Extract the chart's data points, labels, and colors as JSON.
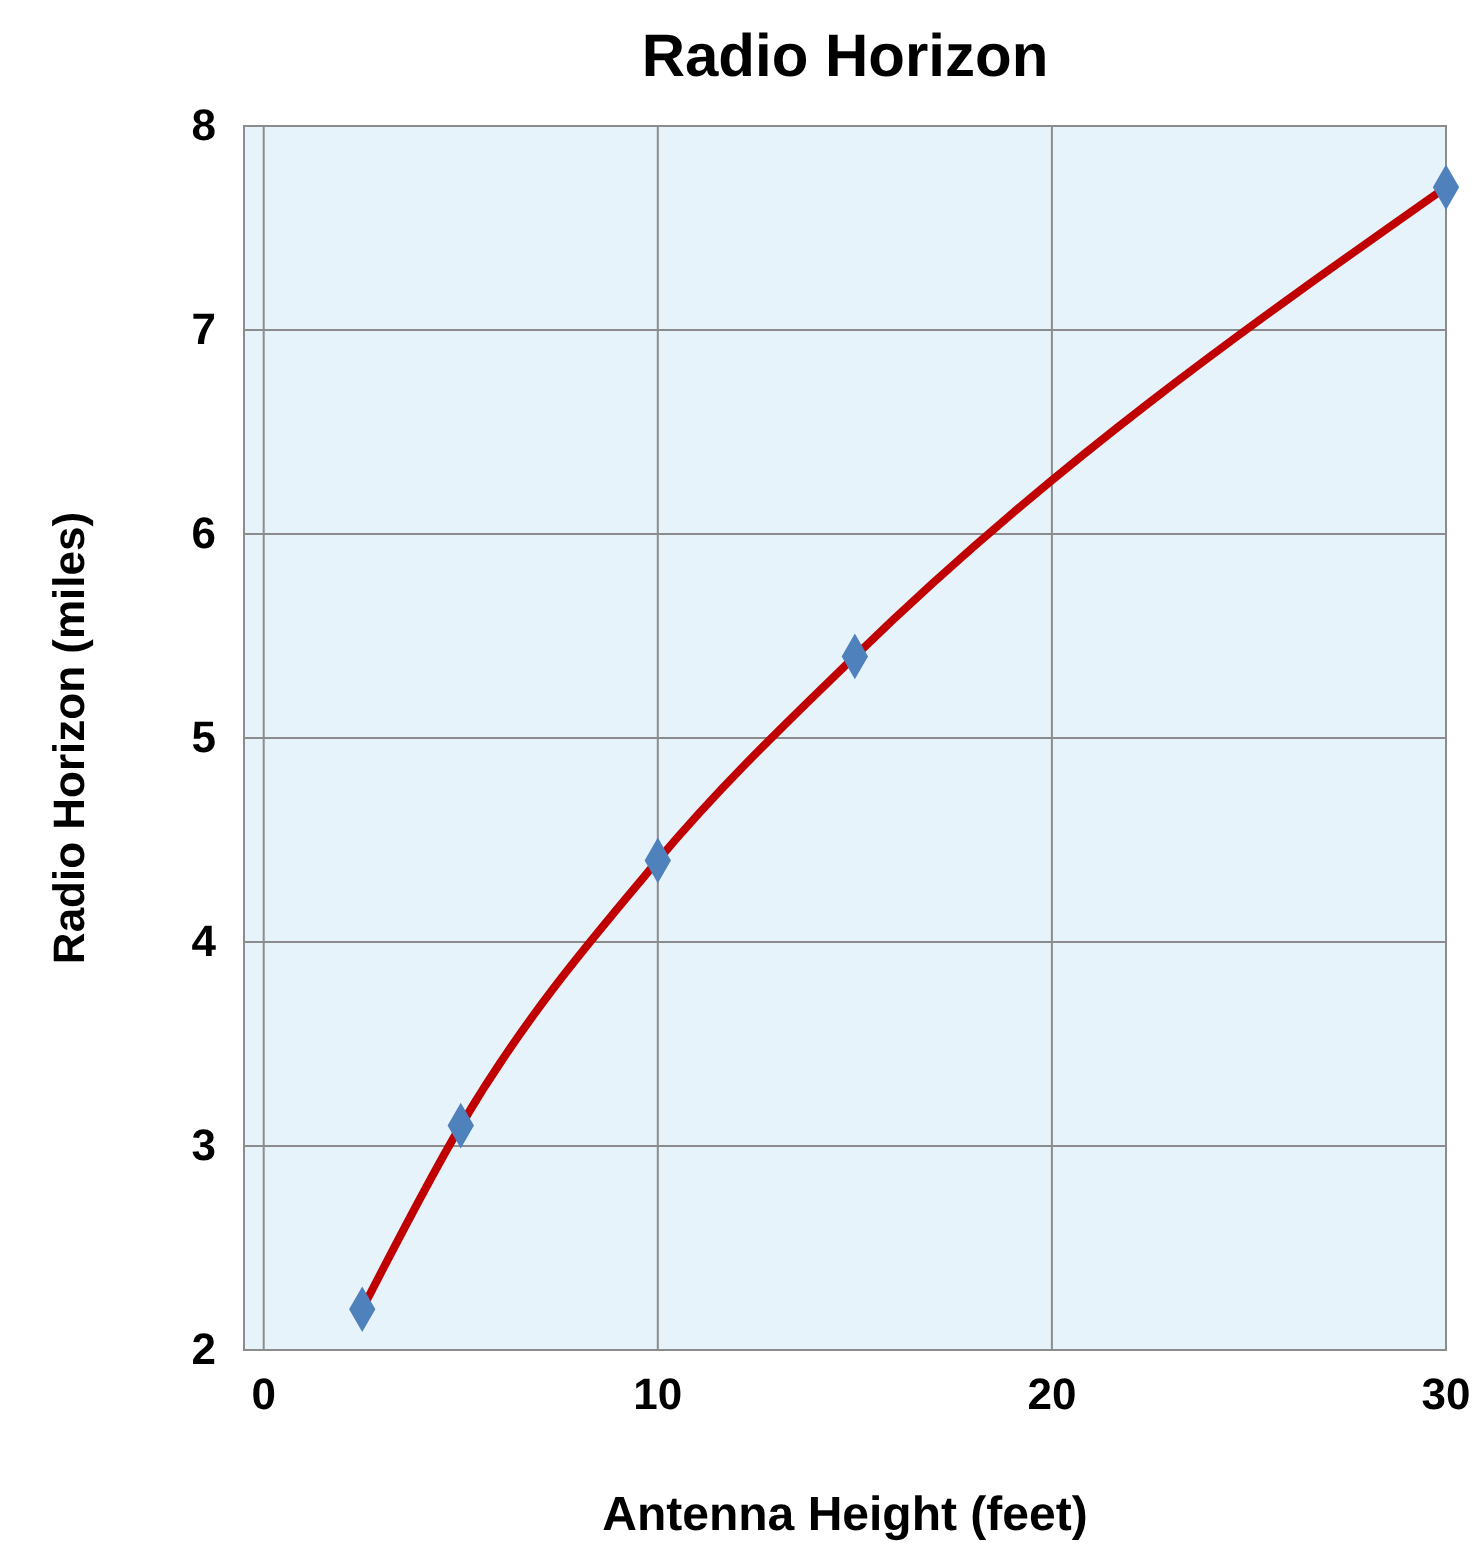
{
  "chart_data": {
    "type": "line",
    "title": "Radio Horizon",
    "xlabel": "Antenna Height (feet)",
    "ylabel": "Radio Horizon (miles)",
    "x": [
      2.5,
      5,
      10,
      15,
      30
    ],
    "series": [
      {
        "color": "#c00000",
        "values": [
          2.2,
          3.1,
          4.4,
          5.4,
          7.7
        ]
      }
    ],
    "xlim": [
      -0.5,
      30
    ],
    "xticks": [
      0,
      10,
      20,
      30
    ],
    "ylim": [
      2,
      8
    ],
    "yticks": [
      2,
      3,
      4,
      5,
      6,
      7,
      8
    ],
    "grid": true,
    "marker": "diamond",
    "line_style": "solid"
  }
}
